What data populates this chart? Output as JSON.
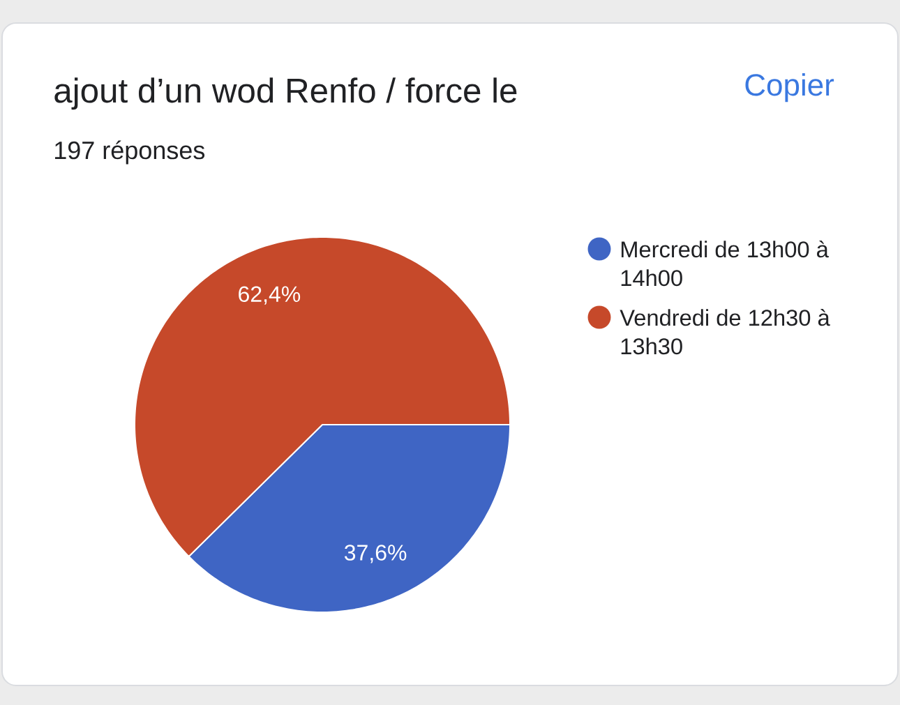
{
  "chart_data": {
    "type": "pie",
    "title": "ajout d’un wod Renfo / force le",
    "subtitle": "197 réponses",
    "categories": [
      "Mercredi de 13h00 à 14h00",
      "Vendredi de 12h30 à 13h30"
    ],
    "values": [
      37.6,
      62.4
    ],
    "colors": [
      "#3f65c4",
      "#c6492a"
    ],
    "value_labels": [
      "37,6%",
      "62,4%"
    ],
    "legend": "right",
    "annotations": [
      "Copier"
    ]
  }
}
